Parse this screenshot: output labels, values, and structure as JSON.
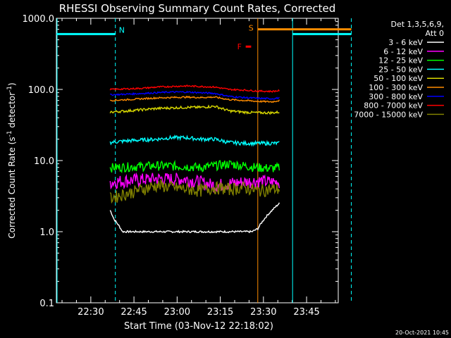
{
  "chart_data": {
    "type": "line",
    "title": "RHESSI Observing Summary Count Rates, Corrected",
    "xlabel": "Start Time (03-Nov-12 22:18:02)",
    "ylabel_main": "Corrected Count Rate (s",
    "ylabel_sup": "-1",
    "ylabel_tail": " detector",
    "ylabel_close": ")",
    "yscale": "log",
    "ylim": [
      0.1,
      1000
    ],
    "xlim": [
      "22:18:02",
      "23:56:00"
    ],
    "x_ticks": [
      "22:30",
      "22:45",
      "23:00",
      "23:15",
      "23:30",
      "23:45"
    ],
    "x_tick_minutes": [
      30,
      45,
      60,
      75,
      90,
      105
    ],
    "y_ticks": [
      "0.1",
      "1.0",
      "10.0",
      "100.0",
      "1000.0"
    ],
    "y_tick_values": [
      0.1,
      1,
      10,
      100,
      1000
    ],
    "legend": {
      "header1": "Det 1,3,5,6,9,",
      "header2": "Att 0",
      "placement": "top-right"
    },
    "series": [
      {
        "name": "3 - 6 keV",
        "color": "#ffffff",
        "x": [
          28.7,
          30,
          33,
          40,
          50,
          60,
          70,
          75,
          78,
          80,
          85,
          87.5
        ],
        "y": [
          2,
          1.5,
          1,
          1,
          1,
          1,
          1,
          1,
          1,
          1.1,
          2,
          2.5
        ]
      },
      {
        "name": "6 - 12 keV",
        "color": "#ff00ff",
        "x": [
          28.7,
          35,
          45,
          55,
          60,
          65,
          70,
          75,
          80,
          85,
          87.5
        ],
        "y": [
          5,
          5.3,
          5.6,
          5.5,
          5.0,
          4.5,
          4.8,
          5.0,
          5.2,
          5.0,
          5.0
        ]
      },
      {
        "name": "12 - 25 keV",
        "color": "#00ff00",
        "x": [
          28.7,
          35,
          45,
          55,
          60,
          65,
          70,
          75,
          80,
          85,
          87.5
        ],
        "y": [
          8,
          8.2,
          8.5,
          8.3,
          8.0,
          8.5,
          9.0,
          8.5,
          8.0,
          7.8,
          8.0
        ]
      },
      {
        "name": "25 - 50 keV",
        "color": "#00ffff",
        "x": [
          28.7,
          35,
          40,
          45,
          50,
          55,
          60,
          65,
          70,
          75,
          80,
          85,
          87.5
        ],
        "y": [
          18,
          19,
          19.5,
          20,
          21,
          21,
          20,
          20,
          18,
          17.5,
          17.5,
          17.5,
          17.5
        ]
      },
      {
        "name": "50 - 100 keV",
        "color": "#d8d800",
        "x": [
          28.7,
          35,
          40,
          45,
          50,
          55,
          60,
          65,
          70,
          75,
          80,
          85,
          87.5
        ],
        "y": [
          48,
          50,
          52,
          54,
          55,
          56,
          56,
          58,
          50,
          48,
          47,
          47,
          48
        ]
      },
      {
        "name": "100 - 300 keV",
        "color": "#ff8c00",
        "x": [
          28.7,
          35,
          40,
          45,
          50,
          55,
          60,
          65,
          70,
          75,
          80,
          85,
          87.5
        ],
        "y": [
          70,
          72,
          74,
          76,
          77,
          78,
          77,
          78,
          72,
          70,
          68,
          67,
          70
        ]
      },
      {
        "name": "300 - 800 keV",
        "color": "#0000ff",
        "x": [
          28.7,
          35,
          40,
          45,
          50,
          55,
          60,
          65,
          70,
          75,
          80,
          85,
          87.5
        ],
        "y": [
          84,
          86,
          88,
          90,
          92,
          92,
          90,
          88,
          80,
          77,
          75,
          74,
          76
        ]
      },
      {
        "name": "800 - 7000 keV",
        "color": "#ff0000",
        "x": [
          28.7,
          35,
          40,
          45,
          50,
          55,
          60,
          65,
          70,
          75,
          80,
          85,
          87.5
        ],
        "y": [
          100,
          102,
          104,
          108,
          110,
          112,
          110,
          108,
          100,
          98,
          95,
          94,
          96
        ]
      },
      {
        "name": "7000 - 15000 keV",
        "color": "#808000",
        "x": [
          28.7,
          35,
          45,
          55,
          60,
          65,
          70,
          75,
          80,
          85,
          87.5
        ],
        "y": [
          3,
          3.5,
          4.5,
          4.0,
          3.8,
          4.2,
          4.0,
          4.2,
          3.8,
          4.0,
          4.0
        ]
      }
    ],
    "flags": {
      "night": [
        {
          "label": "N",
          "x": [
            0,
            20.5
          ],
          "y": 600,
          "color": "#00ffff",
          "end_x": 20.5
        },
        {
          "label": "",
          "x": [
            82.1,
            102.5
          ],
          "y": 600,
          "color": "#00ffff",
          "start_x": 82.1,
          "end_x": 102.5
        }
      ],
      "saa": {
        "label": "S",
        "x": [
          70.0,
          102.5
        ],
        "y": 700,
        "color": "#ff8c00"
      },
      "flare": {
        "label": "F",
        "x": [
          65.8,
          67.7
        ],
        "y": 400,
        "color": "#ff0000"
      }
    },
    "footer_date": "20-Oct-2021 10:45"
  }
}
